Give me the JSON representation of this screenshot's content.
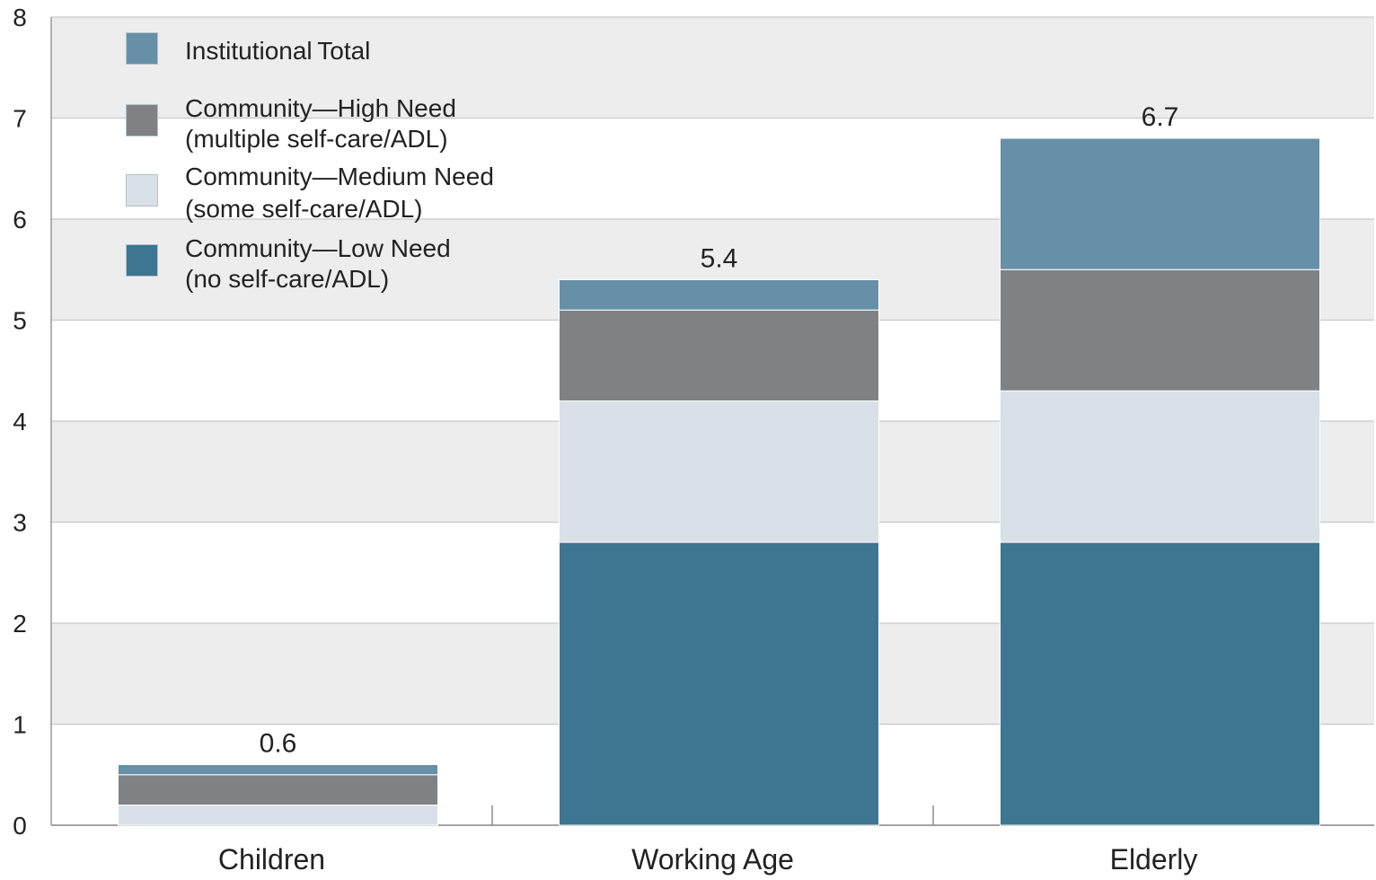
{
  "chart_data": {
    "type": "bar",
    "stacked": true,
    "categories": [
      "Children",
      "Working Age",
      "Elderly"
    ],
    "series": [
      {
        "name": "Community—Low Need (no self-care/ADL)",
        "color": "#3d7592",
        "values": [
          0.0,
          2.8,
          2.8
        ]
      },
      {
        "name": "Community—Medium Need (some self-care/ADL)",
        "color": "#d9e0e8",
        "values": [
          0.2,
          1.4,
          1.5
        ]
      },
      {
        "name": "Community—High Need (multiple self-care/ADL)",
        "color": "#7f8185",
        "values": [
          0.3,
          0.9,
          1.2
        ]
      },
      {
        "name": "Institutional Total",
        "color": "#6690a7",
        "values": [
          0.1,
          0.3,
          1.3
        ]
      }
    ],
    "totals": [
      "0.6",
      "5.4",
      "6.7"
    ],
    "yticks": [
      "0",
      "1",
      "2",
      "3",
      "4",
      "5",
      "6",
      "7",
      "8"
    ],
    "ylim": [
      0,
      8
    ],
    "grid": true,
    "legend_position": "top-left"
  },
  "legend": [
    {
      "line1": "Institutional Total",
      "line2": "",
      "color": "#6690a7"
    },
    {
      "line1": "Community—High Need",
      "line2": "(multiple self-care/ADL)",
      "color": "#7f8185"
    },
    {
      "line1": "Community—Medium Need",
      "line2": "(some self-care/ADL)",
      "color": "#d9e0e8"
    },
    {
      "line1": "Community—Low Need",
      "line2": "(no self-care/ADL)",
      "color": "#3d7592"
    }
  ]
}
